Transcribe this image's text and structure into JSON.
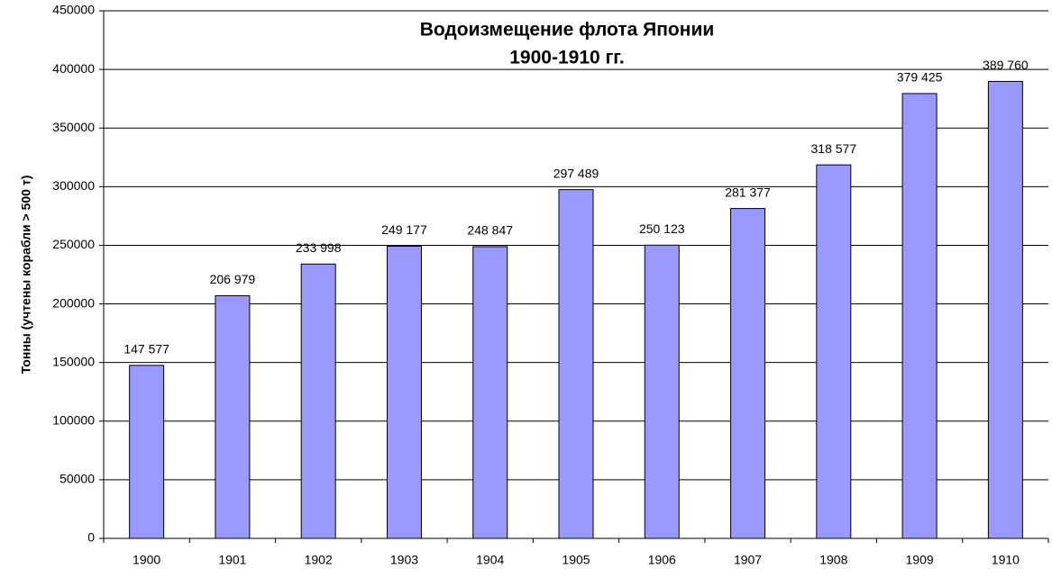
{
  "chart_data": {
    "type": "bar",
    "title": "Водоизмещение флота Японии",
    "subtitle": "1900-1910 гг.",
    "y_label": "Тонны (учтены корабли > 500 т)",
    "categories": [
      "1900",
      "1901",
      "1902",
      "1903",
      "1904",
      "1905",
      "1906",
      "1907",
      "1908",
      "1909",
      "1910"
    ],
    "values": [
      147577,
      206979,
      233998,
      249177,
      248847,
      297489,
      250123,
      281377,
      318577,
      379425,
      389760
    ],
    "value_labels": [
      "147 577",
      "206 979",
      "233 998",
      "249 177",
      "248 847",
      "297 489",
      "250 123",
      "281 377",
      "318 577",
      "379 425",
      "389 760"
    ],
    "color": "#9999ff",
    "ylim": [
      0,
      450000
    ],
    "yticks": [
      0,
      50000,
      100000,
      150000,
      200000,
      250000,
      300000,
      350000,
      400000,
      450000
    ],
    "grid": true
  }
}
